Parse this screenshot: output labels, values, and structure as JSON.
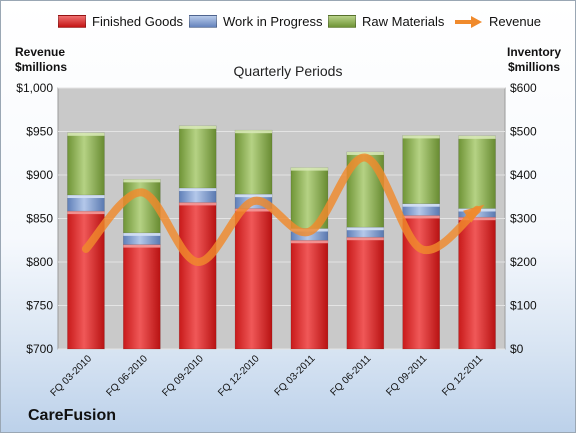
{
  "chart_data": {
    "type": "bar",
    "stacked": true,
    "title": "Quarterly Periods",
    "ylabel": "Revenue\n$millions",
    "y2label": "Inventory\n$millions",
    "ylim": [
      700,
      1000
    ],
    "y2lim": [
      0,
      600
    ],
    "yticks": [
      "$700",
      "$750",
      "$800",
      "$850",
      "$900",
      "$950",
      "$1,000"
    ],
    "y2ticks": [
      "$0",
      "$100",
      "$200",
      "$300",
      "$400",
      "$500",
      "$600"
    ],
    "categories": [
      "FQ 03-2010",
      "FQ 06-2010",
      "FQ 09-2010",
      "FQ 12-2010",
      "FQ 03-2011",
      "FQ 06-2011",
      "FQ 09-2011",
      "FQ 12-2011"
    ],
    "series": [
      {
        "name": "Finished Goods",
        "axis": "right",
        "values": [
          317,
          240,
          337,
          323,
          250,
          257,
          307,
          303
        ],
        "color": "#e01e1e"
      },
      {
        "name": "Work in Progress",
        "axis": "right",
        "values": [
          37,
          27,
          33,
          33,
          27,
          23,
          27,
          20
        ],
        "color": "#7f9fd3"
      },
      {
        "name": "Raw Materials",
        "axis": "right",
        "values": [
          143,
          123,
          143,
          147,
          140,
          173,
          157,
          167
        ],
        "color": "#8fb24e"
      },
      {
        "name": "Revenue",
        "type": "line",
        "axis": "left",
        "values": [
          815,
          880,
          800,
          870,
          835,
          920,
          815,
          860
        ],
        "color": "#f08a2c"
      }
    ],
    "grid": true,
    "legend": "top"
  },
  "brand": "CareFusion"
}
